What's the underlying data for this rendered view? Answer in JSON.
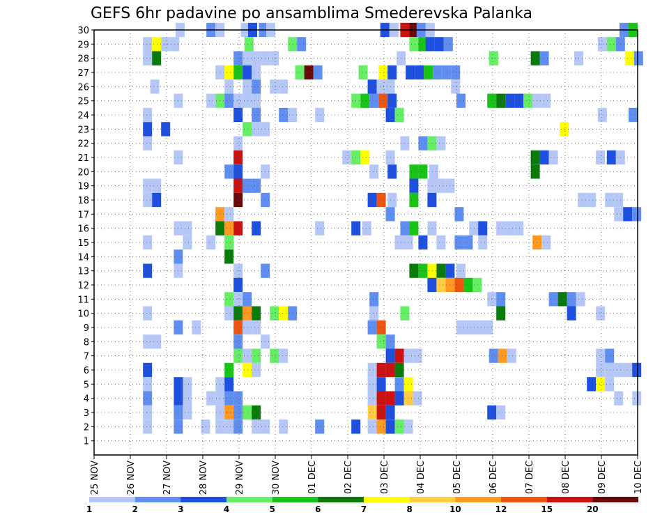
{
  "chart_data": {
    "type": "heatmap",
    "title": "GEFS 6hr padavine po ansamblima Smederevska Palanka",
    "xlabel": "",
    "ylabel": "",
    "x_ticks": [
      "25 NOV",
      "26 NOV",
      "27 NOV",
      "28 NOV",
      "29 NOV",
      "30 NOV",
      "01 DEC",
      "02 DEC",
      "03 DEC",
      "04 DEC",
      "05 DEC",
      "06 DEC",
      "07 DEC",
      "08 DEC",
      "09 DEC",
      "10 DEC"
    ],
    "x_range_days": [
      0,
      15
    ],
    "y_ticks": [
      "1",
      "2",
      "3",
      "4",
      "5",
      "6",
      "7",
      "8",
      "9",
      "10",
      "11",
      "12",
      "13",
      "14",
      "15",
      "16",
      "17",
      "18",
      "19",
      "20",
      "21",
      "22",
      "23",
      "24",
      "25",
      "26",
      "27",
      "28",
      "29",
      "30"
    ],
    "y_range": [
      0,
      30
    ],
    "grid": "dotted",
    "colorbar": {
      "labels": [
        "1",
        "2",
        "3",
        "4",
        "5",
        "6",
        "7",
        "8",
        "10",
        "12",
        "15",
        "20"
      ],
      "colors": [
        "#b4c7f7",
        "#5f8ef0",
        "#1e50e0",
        "#66ee66",
        "#18c418",
        "#0a7a0a",
        "#ffff00",
        "#ffcc44",
        "#ff9922",
        "#ee5511",
        "#cc1111",
        "#6b0808"
      ]
    },
    "cells": [
      [
        30,
        2.25,
        1
      ],
      [
        30,
        3.1,
        2
      ],
      [
        30,
        3.35,
        1
      ],
      [
        30,
        4.05,
        1
      ],
      [
        30,
        4.25,
        3
      ],
      [
        30,
        4.55,
        2
      ],
      [
        30,
        4.75,
        1
      ],
      [
        30,
        7.9,
        3
      ],
      [
        30,
        8.15,
        1
      ],
      [
        30,
        8.45,
        11
      ],
      [
        30,
        8.7,
        12
      ],
      [
        30,
        8.9,
        2
      ],
      [
        30,
        9.15,
        1
      ],
      [
        30,
        14.5,
        2
      ],
      [
        30,
        14.75,
        5
      ],
      [
        29,
        1.35,
        1
      ],
      [
        29,
        1.6,
        7
      ],
      [
        29,
        1.85,
        1
      ],
      [
        29,
        2.1,
        1
      ],
      [
        29,
        4.15,
        4
      ],
      [
        29,
        5.35,
        4
      ],
      [
        29,
        5.6,
        2
      ],
      [
        29,
        8.7,
        4
      ],
      [
        29,
        8.95,
        5
      ],
      [
        29,
        9.15,
        3
      ],
      [
        29,
        9.4,
        3
      ],
      [
        29,
        9.65,
        2
      ],
      [
        29,
        13.9,
        1
      ],
      [
        29,
        14.15,
        4
      ],
      [
        29,
        14.4,
        2
      ],
      [
        28,
        1.35,
        1
      ],
      [
        28,
        1.6,
        6
      ],
      [
        28,
        3.85,
        2
      ],
      [
        28,
        4.1,
        1
      ],
      [
        28,
        4.35,
        1
      ],
      [
        28,
        4.6,
        1
      ],
      [
        28,
        4.85,
        1
      ],
      [
        28,
        8.35,
        1
      ],
      [
        28,
        10.9,
        4
      ],
      [
        28,
        12.05,
        6
      ],
      [
        28,
        12.3,
        2
      ],
      [
        28,
        13.25,
        1
      ],
      [
        28,
        14.65,
        7
      ],
      [
        28,
        14.9,
        2
      ],
      [
        27,
        3.35,
        1
      ],
      [
        27,
        3.6,
        7
      ],
      [
        27,
        3.85,
        5
      ],
      [
        27,
        4.1,
        3
      ],
      [
        27,
        4.35,
        1
      ],
      [
        27,
        5.55,
        4
      ],
      [
        27,
        5.8,
        12
      ],
      [
        27,
        6.05,
        2
      ],
      [
        27,
        7.3,
        4
      ],
      [
        27,
        7.85,
        7
      ],
      [
        27,
        8.1,
        3
      ],
      [
        27,
        8.6,
        3
      ],
      [
        27,
        8.85,
        3
      ],
      [
        27,
        9.1,
        5
      ],
      [
        27,
        9.35,
        2
      ],
      [
        27,
        9.6,
        2
      ],
      [
        27,
        9.85,
        2
      ],
      [
        26,
        1.55,
        1
      ],
      [
        26,
        3.6,
        1
      ],
      [
        26,
        4.1,
        1
      ],
      [
        26,
        4.35,
        2
      ],
      [
        26,
        4.85,
        1
      ],
      [
        26,
        5.1,
        1
      ],
      [
        26,
        7.55,
        3
      ],
      [
        26,
        7.8,
        1
      ],
      [
        26,
        8.05,
        1
      ],
      [
        26,
        9.85,
        1
      ],
      [
        25,
        2.2,
        1
      ],
      [
        25,
        3.1,
        1
      ],
      [
        25,
        3.35,
        4
      ],
      [
        25,
        3.6,
        2
      ],
      [
        25,
        3.85,
        1
      ],
      [
        25,
        4.1,
        1
      ],
      [
        25,
        4.35,
        1
      ],
      [
        25,
        7.1,
        4
      ],
      [
        25,
        7.35,
        5
      ],
      [
        25,
        7.6,
        2
      ],
      [
        25,
        7.85,
        10
      ],
      [
        25,
        8.1,
        3
      ],
      [
        25,
        10.0,
        2
      ],
      [
        25,
        10.85,
        5
      ],
      [
        25,
        11.1,
        6
      ],
      [
        25,
        11.35,
        3
      ],
      [
        25,
        11.6,
        3
      ],
      [
        25,
        11.85,
        4
      ],
      [
        25,
        12.1,
        1
      ],
      [
        25,
        12.35,
        1
      ],
      [
        24,
        1.35,
        1
      ],
      [
        24,
        3.85,
        3
      ],
      [
        24,
        4.35,
        2
      ],
      [
        24,
        5.1,
        2
      ],
      [
        24,
        5.35,
        1
      ],
      [
        24,
        6.1,
        1
      ],
      [
        24,
        8.05,
        3
      ],
      [
        24,
        8.3,
        4
      ],
      [
        24,
        13.9,
        1
      ],
      [
        24,
        14.75,
        2
      ],
      [
        23,
        1.35,
        3
      ],
      [
        23,
        1.85,
        3
      ],
      [
        23,
        4.1,
        4
      ],
      [
        23,
        4.35,
        1
      ],
      [
        23,
        4.6,
        1
      ],
      [
        23,
        12.85,
        7
      ],
      [
        22,
        1.35,
        1
      ],
      [
        22,
        3.85,
        1
      ],
      [
        22,
        8.45,
        1
      ],
      [
        22,
        8.95,
        2
      ],
      [
        22,
        9.2,
        4
      ],
      [
        22,
        9.45,
        1
      ],
      [
        21,
        2.2,
        1
      ],
      [
        21,
        3.85,
        11
      ],
      [
        21,
        6.85,
        1
      ],
      [
        21,
        7.1,
        4
      ],
      [
        21,
        7.35,
        7
      ],
      [
        21,
        8.05,
        1
      ],
      [
        21,
        12.05,
        6
      ],
      [
        21,
        12.3,
        3
      ],
      [
        21,
        12.55,
        1
      ],
      [
        21,
        13.85,
        1
      ],
      [
        21,
        14.15,
        3
      ],
      [
        21,
        14.4,
        1
      ],
      [
        20,
        3.6,
        2
      ],
      [
        20,
        3.85,
        3
      ],
      [
        20,
        4.6,
        1
      ],
      [
        20,
        7.6,
        1
      ],
      [
        20,
        8.1,
        3
      ],
      [
        20,
        8.7,
        5
      ],
      [
        20,
        8.95,
        5
      ],
      [
        20,
        9.25,
        1
      ],
      [
        20,
        12.05,
        6
      ],
      [
        19,
        1.35,
        1
      ],
      [
        19,
        1.6,
        1
      ],
      [
        19,
        3.85,
        11
      ],
      [
        19,
        4.1,
        2
      ],
      [
        19,
        4.35,
        2
      ],
      [
        19,
        8.7,
        3
      ],
      [
        19,
        9.2,
        1
      ],
      [
        19,
        9.45,
        1
      ],
      [
        19,
        9.7,
        1
      ],
      [
        18,
        1.35,
        1
      ],
      [
        18,
        1.6,
        3
      ],
      [
        18,
        3.85,
        12
      ],
      [
        18,
        4.6,
        2
      ],
      [
        18,
        7.55,
        3
      ],
      [
        18,
        7.8,
        10
      ],
      [
        18,
        8.1,
        1
      ],
      [
        18,
        8.7,
        5
      ],
      [
        18,
        9.2,
        3
      ],
      [
        18,
        13.35,
        1
      ],
      [
        18,
        13.6,
        1
      ],
      [
        18,
        14.1,
        1
      ],
      [
        18,
        14.35,
        1
      ],
      [
        17,
        3.35,
        9
      ],
      [
        17,
        3.6,
        1
      ],
      [
        17,
        8.05,
        2
      ],
      [
        17,
        9.95,
        2
      ],
      [
        17,
        14.35,
        1
      ],
      [
        17,
        14.6,
        3
      ],
      [
        17,
        14.85,
        2
      ],
      [
        16,
        2.2,
        1
      ],
      [
        16,
        2.45,
        1
      ],
      [
        16,
        3.35,
        6
      ],
      [
        16,
        3.6,
        9
      ],
      [
        16,
        3.85,
        11
      ],
      [
        16,
        4.35,
        3
      ],
      [
        16,
        6.1,
        1
      ],
      [
        16,
        7.1,
        3
      ],
      [
        16,
        7.4,
        1
      ],
      [
        16,
        8.45,
        2
      ],
      [
        16,
        8.7,
        5
      ],
      [
        16,
        9.2,
        1
      ],
      [
        16,
        10.35,
        1
      ],
      [
        16,
        10.6,
        3
      ],
      [
        16,
        11.1,
        1
      ],
      [
        16,
        11.35,
        1
      ],
      [
        16,
        11.6,
        1
      ],
      [
        15,
        1.35,
        1
      ],
      [
        15,
        2.45,
        1
      ],
      [
        15,
        3.1,
        1
      ],
      [
        15,
        3.6,
        4
      ],
      [
        15,
        8.3,
        1
      ],
      [
        15,
        8.55,
        1
      ],
      [
        15,
        8.95,
        3
      ],
      [
        15,
        9.45,
        1
      ],
      [
        15,
        9.95,
        2
      ],
      [
        15,
        10.2,
        2
      ],
      [
        15,
        10.6,
        1
      ],
      [
        15,
        12.1,
        9
      ],
      [
        15,
        12.35,
        1
      ],
      [
        14,
        2.2,
        2
      ],
      [
        14,
        3.6,
        6
      ],
      [
        13,
        1.35,
        3
      ],
      [
        13,
        2.2,
        1
      ],
      [
        13,
        3.85,
        1
      ],
      [
        13,
        4.6,
        2
      ],
      [
        13,
        8.7,
        6
      ],
      [
        13,
        8.95,
        5
      ],
      [
        13,
        9.2,
        7
      ],
      [
        13,
        9.45,
        6
      ],
      [
        13,
        9.7,
        3
      ],
      [
        13,
        10.0,
        1
      ],
      [
        12,
        3.85,
        3
      ],
      [
        12,
        9.2,
        3
      ],
      [
        12,
        9.45,
        8
      ],
      [
        12,
        9.7,
        9
      ],
      [
        12,
        9.95,
        10
      ],
      [
        12,
        10.2,
        5
      ],
      [
        12,
        10.45,
        4
      ],
      [
        11,
        3.6,
        4
      ],
      [
        11,
        3.85,
        1
      ],
      [
        11,
        4.1,
        2
      ],
      [
        11,
        7.6,
        2
      ],
      [
        11,
        10.85,
        1
      ],
      [
        11,
        11.1,
        2
      ],
      [
        11,
        12.55,
        2
      ],
      [
        11,
        12.8,
        6
      ],
      [
        11,
        13.05,
        2
      ],
      [
        11,
        13.3,
        1
      ],
      [
        10,
        1.35,
        1
      ],
      [
        10,
        3.6,
        1
      ],
      [
        10,
        3.85,
        6
      ],
      [
        10,
        4.1,
        9
      ],
      [
        10,
        4.35,
        6
      ],
      [
        10,
        4.85,
        4
      ],
      [
        10,
        5.1,
        7
      ],
      [
        10,
        5.35,
        2
      ],
      [
        10,
        7.6,
        1
      ],
      [
        10,
        8.45,
        4
      ],
      [
        10,
        11.1,
        6
      ],
      [
        10,
        13.05,
        3
      ],
      [
        10,
        13.85,
        1
      ],
      [
        9,
        2.2,
        2
      ],
      [
        9,
        2.7,
        1
      ],
      [
        9,
        3.85,
        10
      ],
      [
        9,
        4.1,
        1
      ],
      [
        9,
        4.35,
        1
      ],
      [
        9,
        7.55,
        2
      ],
      [
        9,
        7.8,
        10
      ],
      [
        9,
        10.0,
        1
      ],
      [
        9,
        10.25,
        1
      ],
      [
        9,
        10.5,
        1
      ],
      [
        9,
        10.75,
        1
      ],
      [
        8,
        1.35,
        1
      ],
      [
        8,
        1.6,
        1
      ],
      [
        8,
        3.85,
        2
      ],
      [
        8,
        4.6,
        1
      ],
      [
        8,
        7.8,
        4
      ],
      [
        8,
        8.05,
        2
      ],
      [
        7,
        3.85,
        4
      ],
      [
        7,
        4.1,
        1
      ],
      [
        7,
        4.35,
        4
      ],
      [
        7,
        4.85,
        4
      ],
      [
        7,
        5.1,
        1
      ],
      [
        7,
        8.05,
        3
      ],
      [
        7,
        8.3,
        11
      ],
      [
        7,
        8.55,
        1
      ],
      [
        7,
        8.8,
        1
      ],
      [
        7,
        10.9,
        2
      ],
      [
        7,
        11.15,
        9
      ],
      [
        7,
        11.4,
        1
      ],
      [
        7,
        13.85,
        1
      ],
      [
        7,
        14.1,
        2
      ],
      [
        6,
        1.35,
        3
      ],
      [
        6,
        3.6,
        5
      ],
      [
        6,
        4.1,
        7
      ],
      [
        6,
        4.35,
        1
      ],
      [
        6,
        7.55,
        1
      ],
      [
        6,
        7.8,
        11
      ],
      [
        6,
        8.05,
        11
      ],
      [
        6,
        8.3,
        6
      ],
      [
        6,
        13.85,
        1
      ],
      [
        6,
        14.1,
        1
      ],
      [
        6,
        14.35,
        1
      ],
      [
        6,
        14.6,
        1
      ],
      [
        6,
        14.85,
        3
      ],
      [
        5,
        1.35,
        1
      ],
      [
        5,
        2.2,
        3
      ],
      [
        5,
        2.45,
        1
      ],
      [
        5,
        3.35,
        1
      ],
      [
        5,
        3.6,
        3
      ],
      [
        5,
        7.55,
        1
      ],
      [
        5,
        7.8,
        3
      ],
      [
        5,
        8.3,
        2
      ],
      [
        5,
        8.55,
        7
      ],
      [
        5,
        13.6,
        3
      ],
      [
        5,
        13.85,
        7
      ],
      [
        5,
        14.1,
        1
      ],
      [
        4,
        1.35,
        2
      ],
      [
        4,
        2.2,
        3
      ],
      [
        4,
        2.45,
        1
      ],
      [
        4,
        3.1,
        1
      ],
      [
        4,
        3.35,
        1
      ],
      [
        4,
        3.6,
        2
      ],
      [
        4,
        3.85,
        2
      ],
      [
        4,
        7.55,
        1
      ],
      [
        4,
        7.8,
        11
      ],
      [
        4,
        8.05,
        11
      ],
      [
        4,
        8.3,
        3
      ],
      [
        4,
        8.55,
        8
      ],
      [
        4,
        8.8,
        1
      ],
      [
        4,
        14.35,
        1
      ],
      [
        4,
        14.85,
        1
      ],
      [
        3,
        1.35,
        1
      ],
      [
        3,
        2.2,
        2
      ],
      [
        3,
        2.45,
        1
      ],
      [
        3,
        3.35,
        1
      ],
      [
        3,
        3.6,
        9
      ],
      [
        3,
        3.85,
        2
      ],
      [
        3,
        4.1,
        4
      ],
      [
        3,
        4.35,
        6
      ],
      [
        3,
        7.55,
        8
      ],
      [
        3,
        7.8,
        11
      ],
      [
        3,
        8.05,
        3
      ],
      [
        3,
        10.85,
        3
      ],
      [
        3,
        11.1,
        1
      ],
      [
        2,
        1.35,
        1
      ],
      [
        2,
        2.2,
        2
      ],
      [
        2,
        2.95,
        1
      ],
      [
        2,
        3.35,
        1
      ],
      [
        2,
        3.6,
        1
      ],
      [
        2,
        3.85,
        2
      ],
      [
        2,
        4.35,
        1
      ],
      [
        2,
        4.6,
        1
      ],
      [
        2,
        5.1,
        1
      ],
      [
        2,
        6.1,
        2
      ],
      [
        2,
        7.1,
        3
      ],
      [
        2,
        7.55,
        1
      ],
      [
        2,
        7.8,
        9
      ],
      [
        2,
        8.05,
        3
      ],
      [
        2,
        8.3,
        4
      ],
      [
        2,
        8.55,
        1
      ]
    ]
  }
}
